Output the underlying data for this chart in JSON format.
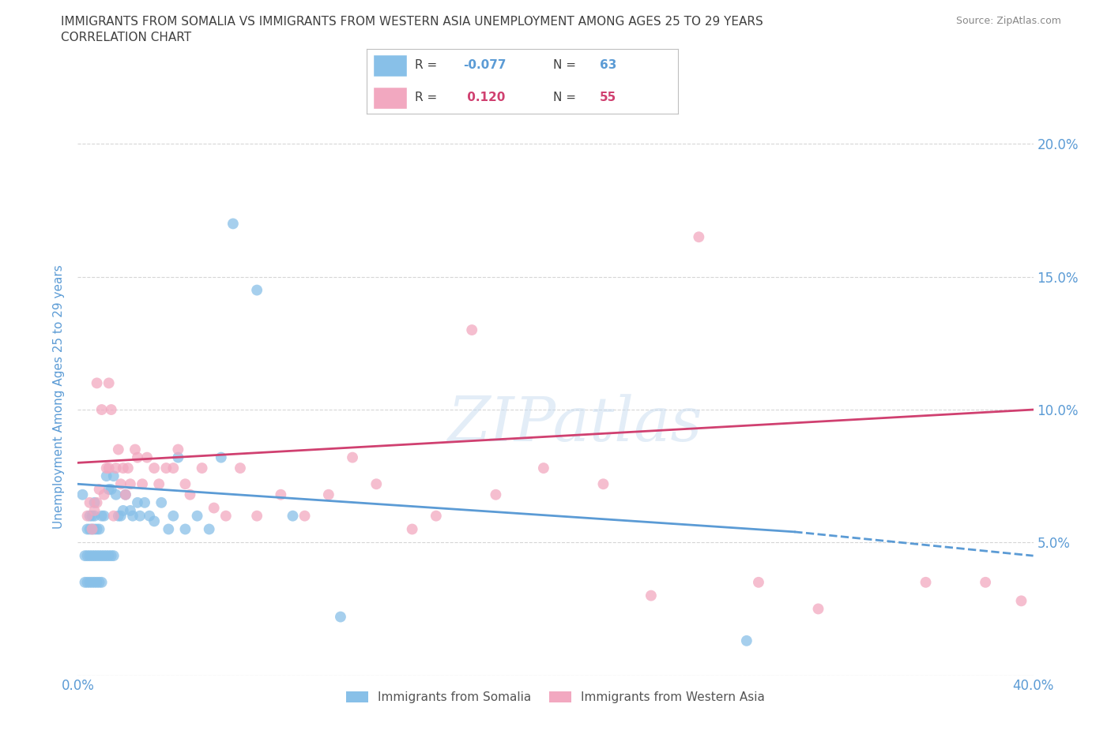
{
  "title_line1": "IMMIGRANTS FROM SOMALIA VS IMMIGRANTS FROM WESTERN ASIA UNEMPLOYMENT AMONG AGES 25 TO 29 YEARS",
  "title_line2": "CORRELATION CHART",
  "source": "Source: ZipAtlas.com",
  "watermark": "ZIPatlas",
  "ylabel": "Unemployment Among Ages 25 to 29 years",
  "xlim": [
    0.0,
    0.4
  ],
  "ylim": [
    0.0,
    0.21
  ],
  "xticks": [
    0.0,
    0.1,
    0.2,
    0.3,
    0.4
  ],
  "xticklabels": [
    "0.0%",
    "",
    "",
    "",
    "40.0%"
  ],
  "yticks": [
    0.0,
    0.05,
    0.1,
    0.15,
    0.2
  ],
  "left_yticklabels": [
    "",
    "",
    "",
    "",
    ""
  ],
  "right_yticklabels": [
    "",
    "5.0%",
    "10.0%",
    "15.0%",
    "20.0%"
  ],
  "somalia_color": "#88C0E8",
  "western_asia_color": "#F2A8C0",
  "somalia_R": -0.077,
  "somalia_N": 63,
  "western_asia_R": 0.12,
  "western_asia_N": 55,
  "somalia_trend_color": "#5B9BD5",
  "western_asia_trend_color": "#D04070",
  "somalia_trend_solid_end": 0.3,
  "somalia_x": [
    0.002,
    0.003,
    0.003,
    0.004,
    0.004,
    0.004,
    0.005,
    0.005,
    0.005,
    0.005,
    0.006,
    0.006,
    0.006,
    0.006,
    0.007,
    0.007,
    0.007,
    0.007,
    0.007,
    0.008,
    0.008,
    0.008,
    0.009,
    0.009,
    0.009,
    0.01,
    0.01,
    0.01,
    0.011,
    0.011,
    0.012,
    0.012,
    0.013,
    0.013,
    0.014,
    0.014,
    0.015,
    0.015,
    0.016,
    0.017,
    0.018,
    0.019,
    0.02,
    0.022,
    0.023,
    0.025,
    0.026,
    0.028,
    0.03,
    0.032,
    0.035,
    0.038,
    0.04,
    0.042,
    0.045,
    0.05,
    0.055,
    0.06,
    0.065,
    0.075,
    0.09,
    0.11,
    0.28
  ],
  "somalia_y": [
    0.068,
    0.035,
    0.045,
    0.035,
    0.045,
    0.055,
    0.035,
    0.045,
    0.055,
    0.06,
    0.035,
    0.045,
    0.055,
    0.06,
    0.035,
    0.045,
    0.055,
    0.06,
    0.065,
    0.035,
    0.045,
    0.055,
    0.035,
    0.045,
    0.055,
    0.035,
    0.045,
    0.06,
    0.045,
    0.06,
    0.045,
    0.075,
    0.045,
    0.07,
    0.045,
    0.07,
    0.045,
    0.075,
    0.068,
    0.06,
    0.06,
    0.062,
    0.068,
    0.062,
    0.06,
    0.065,
    0.06,
    0.065,
    0.06,
    0.058,
    0.065,
    0.055,
    0.06,
    0.082,
    0.055,
    0.06,
    0.055,
    0.082,
    0.17,
    0.145,
    0.06,
    0.022,
    0.013
  ],
  "western_asia_x": [
    0.004,
    0.005,
    0.006,
    0.007,
    0.008,
    0.008,
    0.009,
    0.01,
    0.011,
    0.012,
    0.013,
    0.013,
    0.014,
    0.015,
    0.016,
    0.017,
    0.018,
    0.019,
    0.02,
    0.021,
    0.022,
    0.024,
    0.025,
    0.027,
    0.029,
    0.032,
    0.034,
    0.037,
    0.04,
    0.042,
    0.045,
    0.047,
    0.052,
    0.057,
    0.062,
    0.068,
    0.075,
    0.085,
    0.095,
    0.105,
    0.115,
    0.125,
    0.14,
    0.15,
    0.165,
    0.175,
    0.195,
    0.22,
    0.24,
    0.26,
    0.285,
    0.31,
    0.355,
    0.38,
    0.395
  ],
  "western_asia_y": [
    0.06,
    0.065,
    0.055,
    0.062,
    0.065,
    0.11,
    0.07,
    0.1,
    0.068,
    0.078,
    0.11,
    0.078,
    0.1,
    0.06,
    0.078,
    0.085,
    0.072,
    0.078,
    0.068,
    0.078,
    0.072,
    0.085,
    0.082,
    0.072,
    0.082,
    0.078,
    0.072,
    0.078,
    0.078,
    0.085,
    0.072,
    0.068,
    0.078,
    0.063,
    0.06,
    0.078,
    0.06,
    0.068,
    0.06,
    0.068,
    0.082,
    0.072,
    0.055,
    0.06,
    0.13,
    0.068,
    0.078,
    0.072,
    0.03,
    0.165,
    0.035,
    0.025,
    0.035,
    0.035,
    0.028
  ],
  "grid_color": "#cccccc",
  "background_color": "#ffffff",
  "title_color": "#404040",
  "source_color": "#888888",
  "axis_label_color": "#5B9BD5",
  "tick_color": "#5B9BD5"
}
